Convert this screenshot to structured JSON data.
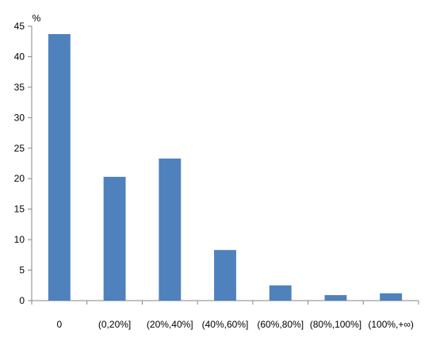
{
  "chart_data": {
    "type": "bar",
    "ylabel": "%",
    "categories": [
      "0",
      "(0,20%]",
      "(20%,40%]",
      "(40%,60%]",
      "(60%,80%]",
      "(80%,100%]",
      "(100%,+∞)"
    ],
    "series": [
      {
        "values": [
          43.7,
          20.3,
          23.3,
          8.3,
          2.5,
          0.9,
          1.2
        ]
      }
    ],
    "ylim": [
      0,
      45
    ],
    "yticks": [
      0,
      5,
      10,
      15,
      20,
      25,
      30,
      35,
      40,
      45
    ],
    "grid": false,
    "bar_color": "#4f81bd",
    "axis_color": "#868686"
  }
}
